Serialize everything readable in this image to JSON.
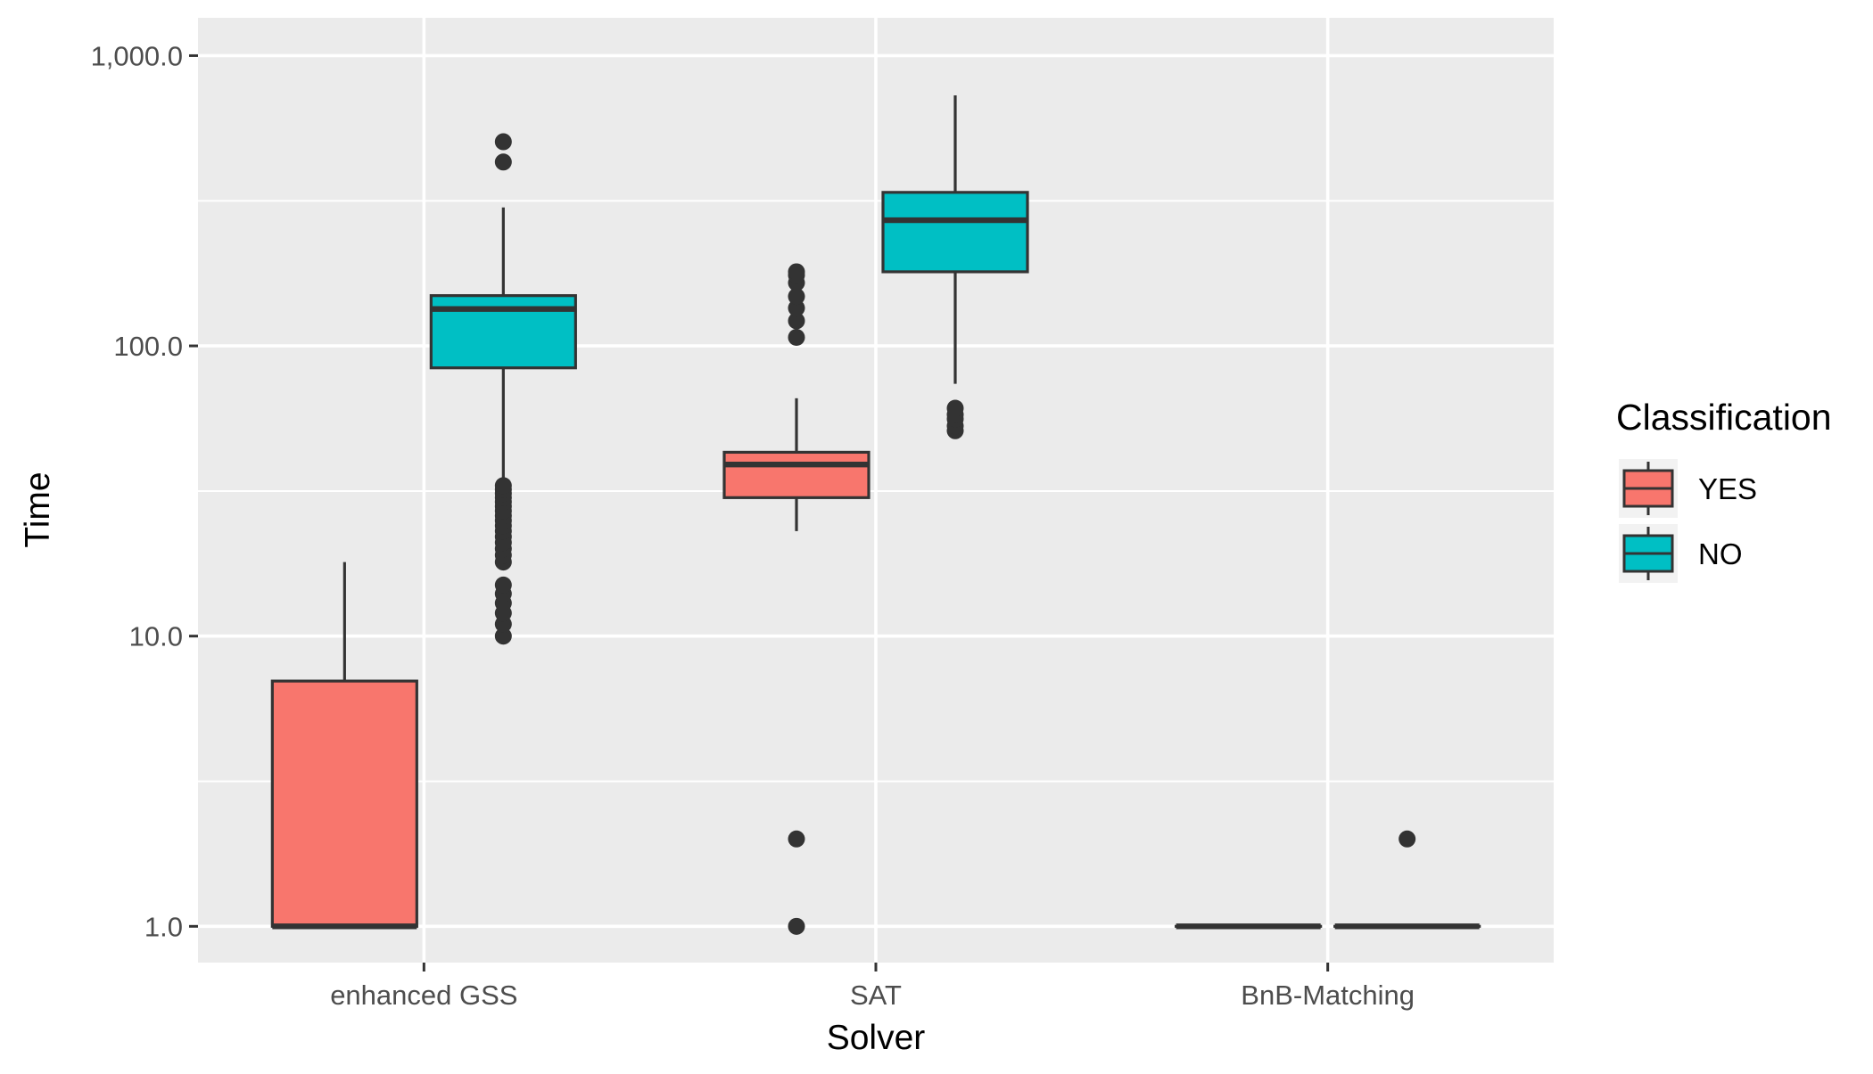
{
  "chart_data": {
    "type": "boxplot",
    "xlabel": "Solver",
    "ylabel": "Time",
    "y_scale": "log10",
    "ylim": [
      0.75,
      1350
    ],
    "y_ticks": [
      1,
      10,
      100,
      1000
    ],
    "y_tick_labels": [
      "1.0",
      "10.0",
      "100.0",
      "1,000.0"
    ],
    "y_minor_ticks": [
      3.16,
      31.6,
      316
    ],
    "categories": [
      "enhanced GSS",
      "SAT",
      "BnB-Matching"
    ],
    "grid": true,
    "legend": {
      "title": "Classification",
      "position": "right",
      "entries": [
        {
          "label": "YES",
          "color": "#F8766D"
        },
        {
          "label": "NO",
          "color": "#00BFC4"
        }
      ]
    },
    "series": [
      {
        "name": "YES",
        "color": "#F8766D",
        "boxes": [
          {
            "category": "enhanced GSS",
            "whisker_low": 1,
            "q1": 1,
            "median": 1,
            "q3": 7,
            "whisker_high": 18,
            "outliers": []
          },
          {
            "category": "SAT",
            "whisker_low": 23,
            "q1": 30,
            "median": 39,
            "q3": 43,
            "whisker_high": 66,
            "outliers": [
              1,
              2,
              107,
              122,
              135,
              148,
              165,
              175,
              180
            ]
          },
          {
            "category": "BnB-Matching",
            "whisker_low": 1,
            "q1": 1,
            "median": 1,
            "q3": 1,
            "whisker_high": 1,
            "outliers": []
          }
        ]
      },
      {
        "name": "NO",
        "color": "#00BFC4",
        "boxes": [
          {
            "category": "enhanced GSS",
            "whisker_low": 34,
            "q1": 84,
            "median": 134,
            "q3": 149,
            "whisker_high": 300,
            "outliers": [
              10,
              11,
              12,
              13,
              14,
              15,
              18,
              19,
              20,
              21,
              22,
              23,
              24,
              25,
              26,
              27,
              28,
              29,
              30,
              31,
              32,
              33,
              430,
              505
            ]
          },
          {
            "category": "SAT",
            "whisker_low": 74,
            "q1": 180,
            "median": 271,
            "q3": 338,
            "whisker_high": 730,
            "outliers": [
              51,
              53,
              56,
              58,
              61
            ]
          },
          {
            "category": "BnB-Matching",
            "whisker_low": 1,
            "q1": 1,
            "median": 1,
            "q3": 1,
            "whisker_high": 1,
            "outliers": [
              2
            ]
          }
        ]
      }
    ]
  }
}
